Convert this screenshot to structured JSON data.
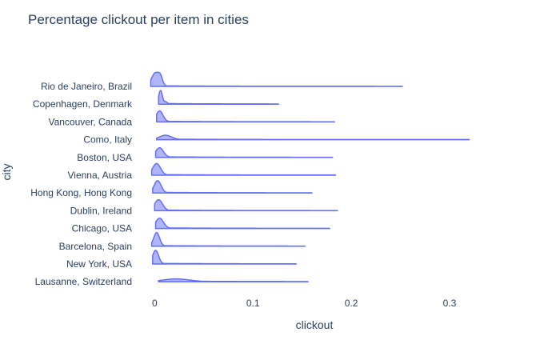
{
  "chart_data": {
    "type": "violin",
    "title": "Percentage clickout per item in cities",
    "xlabel": "clickout",
    "ylabel": "city",
    "xlim": [
      -0.01,
      0.37
    ],
    "xticks": [
      0,
      0.1,
      0.2,
      0.3
    ],
    "xtick_labels": [
      "0",
      "0.1",
      "0.2",
      "0.3"
    ],
    "accent_color": "#636efa",
    "fill_color": "rgba(99,110,250,0.5)",
    "series": [
      {
        "name": "Rio de Janeiro, Brazil",
        "min": -0.004,
        "max": 0.252,
        "mode": 0.001,
        "peak": 1.0,
        "spread": 0.004,
        "extra": [
          [
            0.006,
            0.45,
            0.002
          ]
        ]
      },
      {
        "name": "Copenhagen, Denmark",
        "min": 0.004,
        "max": 0.126,
        "mode": 0.006,
        "peak": 1.0,
        "spread": 0.0018,
        "extra": [
          [
            0.011,
            0.15,
            0.0015
          ]
        ]
      },
      {
        "name": "Vancouver, Canada",
        "min": 0.002,
        "max": 0.183,
        "mode": 0.005,
        "peak": 0.8,
        "spread": 0.0035,
        "extra": []
      },
      {
        "name": "Como, Italy",
        "min": 0.002,
        "max": 0.32,
        "mode": 0.011,
        "peak": 0.32,
        "spread": 0.006,
        "extra": []
      },
      {
        "name": "Boston, USA",
        "min": 0.001,
        "max": 0.181,
        "mode": 0.005,
        "peak": 0.7,
        "spread": 0.004,
        "extra": []
      },
      {
        "name": "Vienna, Austria",
        "min": -0.003,
        "max": 0.184,
        "mode": 0.002,
        "peak": 0.85,
        "spread": 0.004,
        "extra": []
      },
      {
        "name": "Hong Kong, Hong Kong",
        "min": -0.002,
        "max": 0.16,
        "mode": 0.003,
        "peak": 0.9,
        "spread": 0.0035,
        "extra": []
      },
      {
        "name": "Dublin, Ireland",
        "min": 0.0,
        "max": 0.186,
        "mode": 0.004,
        "peak": 0.8,
        "spread": 0.004,
        "extra": []
      },
      {
        "name": "Chicago, USA",
        "min": 0.001,
        "max": 0.178,
        "mode": 0.005,
        "peak": 0.75,
        "spread": 0.004,
        "extra": []
      },
      {
        "name": "Barcelona, Spain",
        "min": -0.003,
        "max": 0.153,
        "mode": 0.002,
        "peak": 1.0,
        "spread": 0.003,
        "extra": []
      },
      {
        "name": "New York, USA",
        "min": -0.002,
        "max": 0.144,
        "mode": 0.001,
        "peak": 1.0,
        "spread": 0.003,
        "extra": []
      },
      {
        "name": "Lausanne, Switzerland",
        "min": 0.004,
        "max": 0.156,
        "mode": 0.022,
        "peak": 0.2,
        "spread": 0.013,
        "extra": []
      }
    ]
  }
}
